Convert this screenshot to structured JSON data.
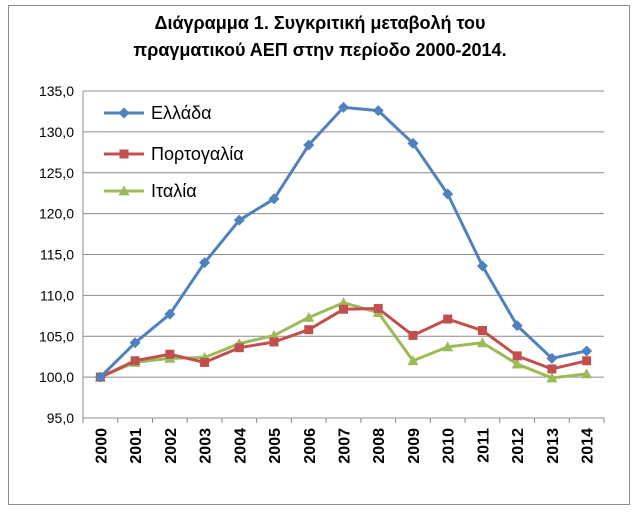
{
  "chart_data": {
    "type": "line",
    "title_line1": "Διάγραμμα 1. Συγκριτική μεταβολή του",
    "title_line2": "πραγματικού ΑΕΠ στην περίοδο 2000-2014.",
    "xlabel": "",
    "ylabel": "",
    "ylim": [
      95,
      135
    ],
    "yticks": [
      "95,0",
      "100,0",
      "105,0",
      "110,0",
      "115,0",
      "120,0",
      "125,0",
      "130,0",
      "135,0"
    ],
    "categories": [
      "2000",
      "2001",
      "2002",
      "2003",
      "2004",
      "2005",
      "2006",
      "2007",
      "2008",
      "2009",
      "2010",
      "2011",
      "2012",
      "2013",
      "2014"
    ],
    "grid": true,
    "legend_position": "top-left",
    "series": [
      {
        "name": "Ελλάδα",
        "color": "#4f81bd",
        "marker": "diamond",
        "values": [
          100.0,
          104.2,
          107.7,
          114.0,
          119.2,
          121.8,
          128.4,
          133.0,
          132.6,
          128.6,
          122.4,
          113.6,
          106.3,
          102.3,
          103.2
        ]
      },
      {
        "name": "Πορτογαλία",
        "color": "#c0504d",
        "marker": "square",
        "values": [
          100.0,
          102.0,
          102.8,
          101.8,
          103.6,
          104.3,
          105.8,
          108.3,
          108.4,
          105.1,
          107.1,
          105.7,
          102.6,
          101.0,
          102.0
        ]
      },
      {
        "name": "Ιταλία",
        "color": "#9bbb59",
        "marker": "triangle",
        "values": [
          100.0,
          101.8,
          102.3,
          102.4,
          104.1,
          105.1,
          107.3,
          109.1,
          107.9,
          102.0,
          103.7,
          104.2,
          101.6,
          99.9,
          100.4
        ]
      }
    ]
  }
}
